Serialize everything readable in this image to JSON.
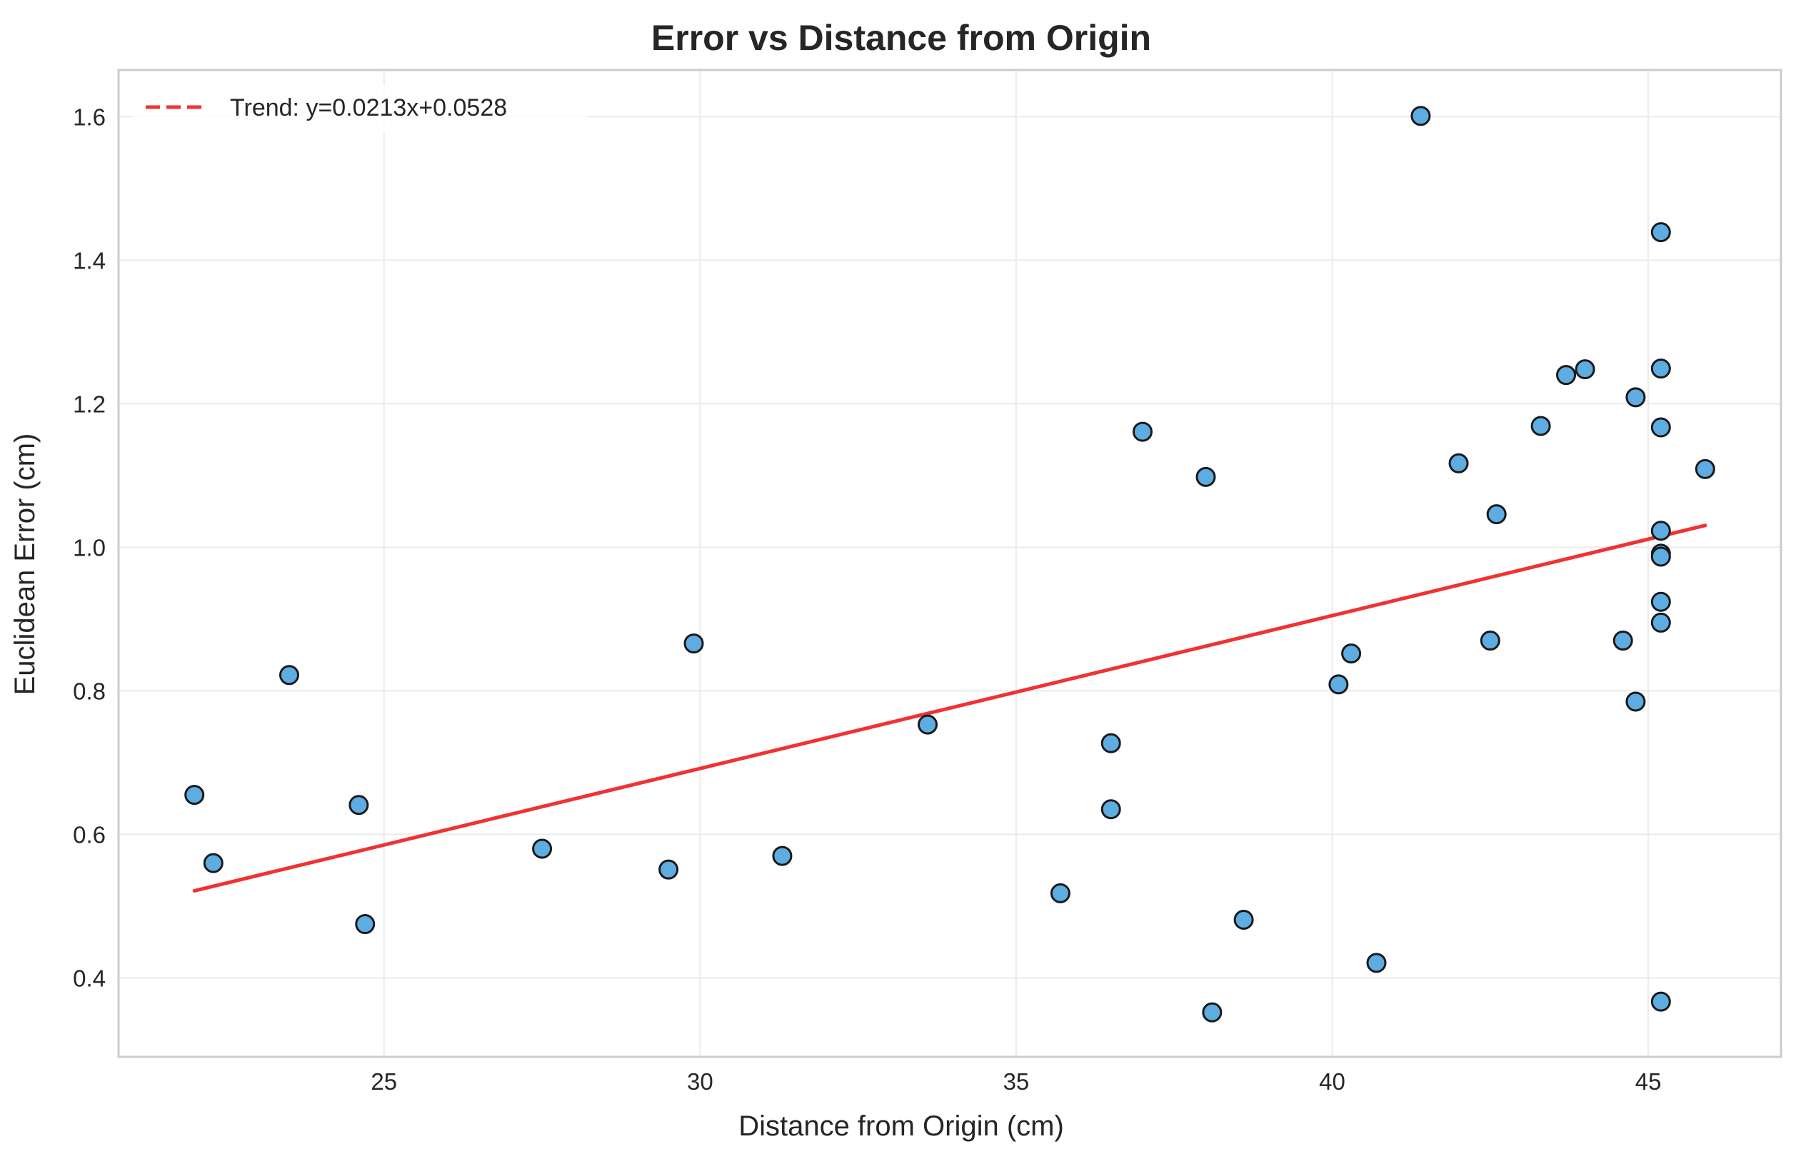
{
  "chart_data": {
    "type": "scatter",
    "title": "Error vs Distance from Origin",
    "xlabel": "Distance from Origin (cm)",
    "ylabel": "Euclidean Error (cm)",
    "xlim": [
      20.8,
      47.1
    ],
    "ylim": [
      0.29,
      1.665
    ],
    "xticks": [
      25,
      30,
      35,
      40,
      45
    ],
    "yticks": [
      0.4,
      0.6,
      0.8,
      1.0,
      1.2,
      1.4,
      1.6
    ],
    "grid": true,
    "legend_position": "top-left",
    "point_color": "#5dade2",
    "point_edge_color": "#1a1a1a",
    "trend_color": "#f03232",
    "trend": {
      "label": "Trend: y=0.0213x+0.0528",
      "slope": 0.0213,
      "intercept": 0.0528,
      "x_range": [
        22.0,
        45.9
      ]
    },
    "points": [
      {
        "x": 22.0,
        "y": 0.655
      },
      {
        "x": 22.3,
        "y": 0.56
      },
      {
        "x": 23.5,
        "y": 0.822
      },
      {
        "x": 24.6,
        "y": 0.641
      },
      {
        "x": 24.7,
        "y": 0.475
      },
      {
        "x": 27.5,
        "y": 0.58
      },
      {
        "x": 29.5,
        "y": 0.551
      },
      {
        "x": 29.9,
        "y": 0.866
      },
      {
        "x": 31.3,
        "y": 0.57
      },
      {
        "x": 33.6,
        "y": 0.753
      },
      {
        "x": 35.7,
        "y": 0.518
      },
      {
        "x": 36.5,
        "y": 0.635
      },
      {
        "x": 36.5,
        "y": 0.727
      },
      {
        "x": 37.0,
        "y": 1.161
      },
      {
        "x": 38.0,
        "y": 1.098
      },
      {
        "x": 38.1,
        "y": 0.352
      },
      {
        "x": 38.6,
        "y": 0.481
      },
      {
        "x": 40.1,
        "y": 0.809
      },
      {
        "x": 40.3,
        "y": 0.852
      },
      {
        "x": 40.7,
        "y": 0.421
      },
      {
        "x": 41.4,
        "y": 1.601
      },
      {
        "x": 42.0,
        "y": 1.117
      },
      {
        "x": 42.5,
        "y": 0.87
      },
      {
        "x": 42.6,
        "y": 1.046
      },
      {
        "x": 43.3,
        "y": 1.169
      },
      {
        "x": 43.7,
        "y": 1.24
      },
      {
        "x": 44.0,
        "y": 1.248
      },
      {
        "x": 44.6,
        "y": 0.87
      },
      {
        "x": 44.8,
        "y": 1.209
      },
      {
        "x": 44.8,
        "y": 0.785
      },
      {
        "x": 45.2,
        "y": 1.439
      },
      {
        "x": 45.2,
        "y": 1.249
      },
      {
        "x": 45.2,
        "y": 1.167
      },
      {
        "x": 45.2,
        "y": 1.023
      },
      {
        "x": 45.2,
        "y": 0.991
      },
      {
        "x": 45.2,
        "y": 0.987
      },
      {
        "x": 45.2,
        "y": 0.924
      },
      {
        "x": 45.2,
        "y": 0.895
      },
      {
        "x": 45.2,
        "y": 0.367
      },
      {
        "x": 45.9,
        "y": 1.109
      }
    ]
  }
}
